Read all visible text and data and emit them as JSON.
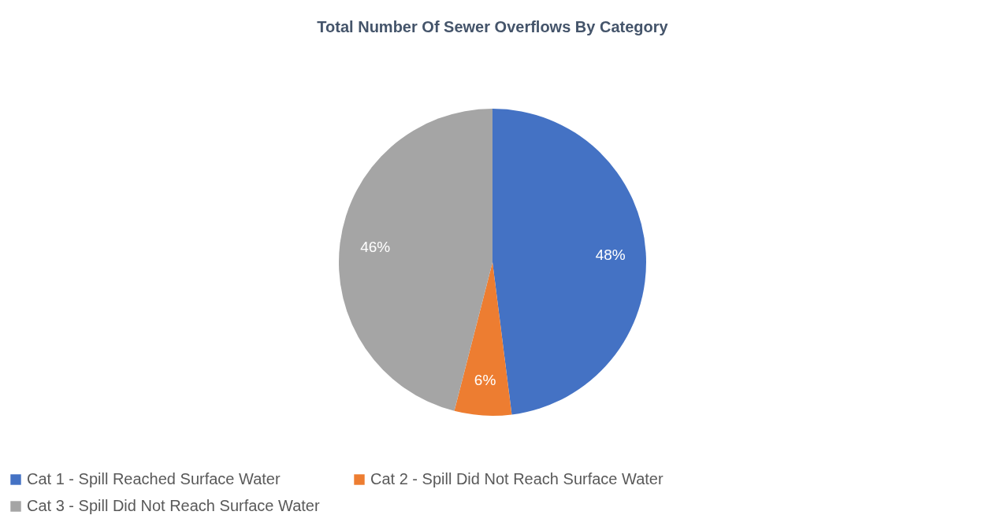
{
  "chart_data": {
    "type": "pie",
    "title": "Total Number Of Sewer Overflows By Category",
    "categories": [
      "Cat 1 - Spill Reached Surface Water",
      "Cat 2 - Spill Did Not Reach Surface Water",
      "Cat 3 - Spill Did Not Reach Surface Water"
    ],
    "values": [
      48,
      6,
      46
    ],
    "colors": [
      "#4472c4",
      "#ed7d31",
      "#a5a5a5"
    ],
    "value_labels": [
      "48%",
      "6%",
      "46%"
    ],
    "legend": "bottom"
  }
}
